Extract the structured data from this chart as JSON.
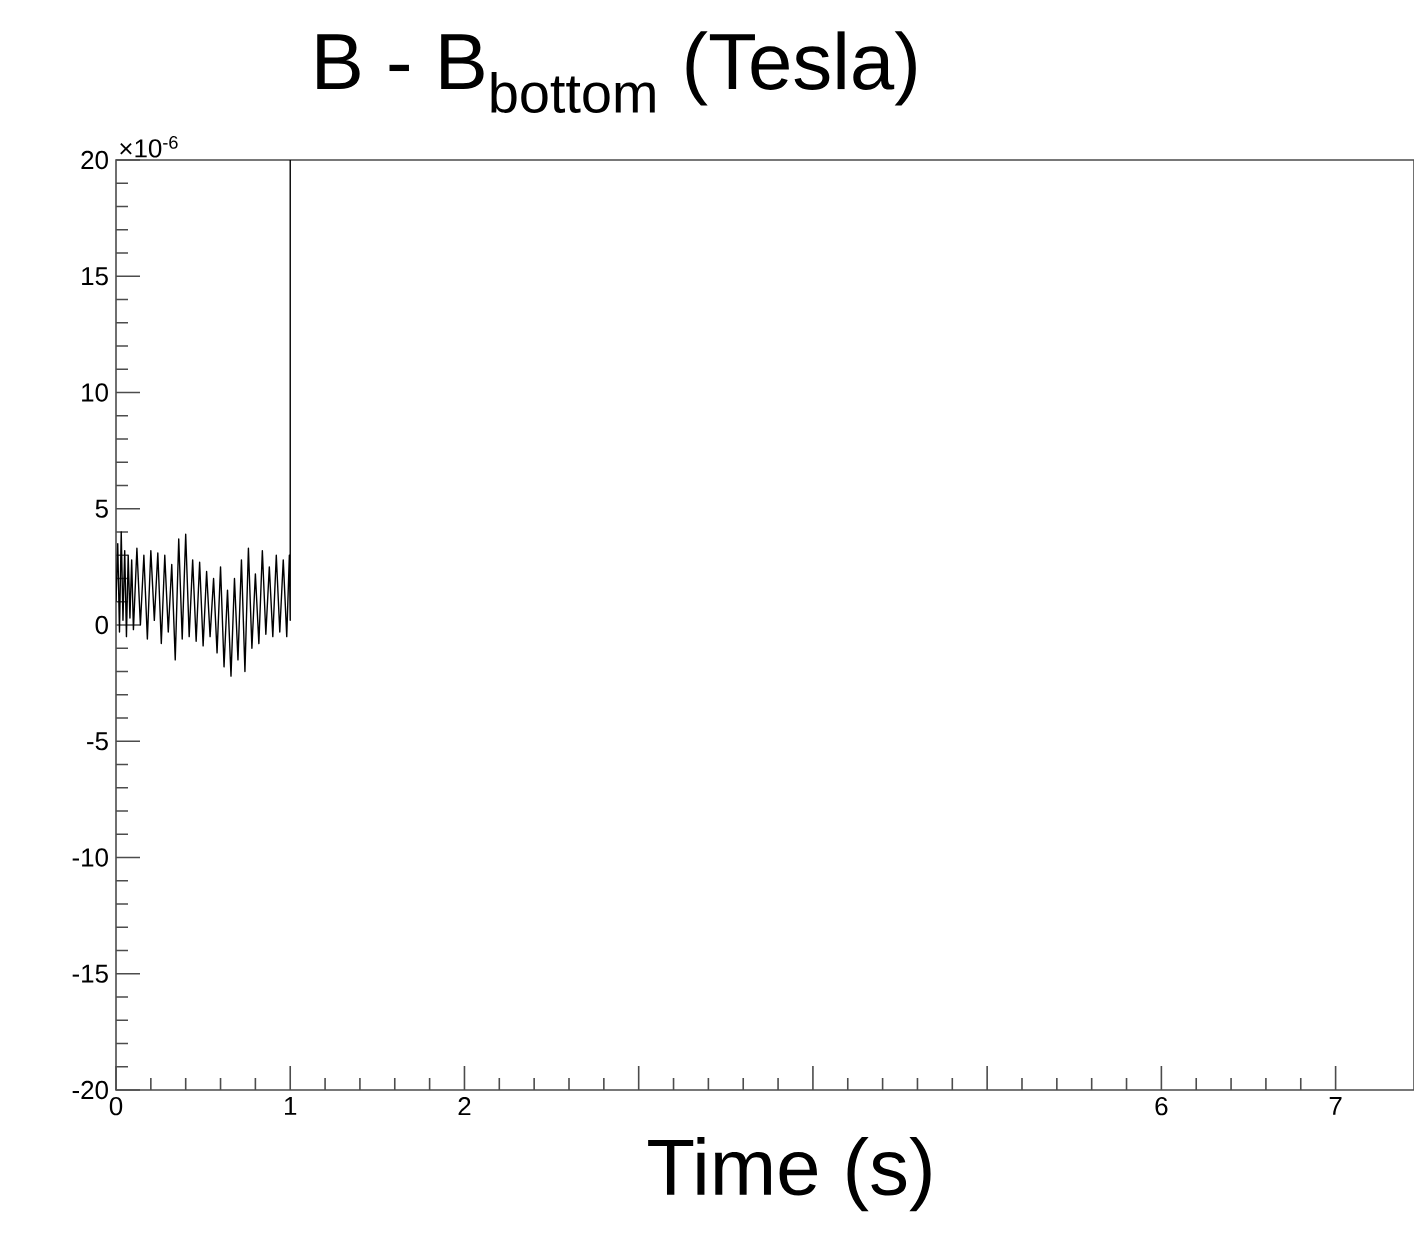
{
  "chart_data": {
    "type": "line",
    "title": "B - B$_{bottom}$ (Tesla)",
    "xlabel": "Time (s)",
    "annotations": [
      "×10$^{-6}$"
    ],
    "xlim": [
      0,
      7.45
    ],
    "ylim": [
      -20,
      20
    ],
    "xticks": [
      0,
      1,
      2,
      {
        "value": 3,
        "label": null
      },
      {
        "value": 4,
        "label": null
      },
      {
        "value": 5,
        "label": null
      },
      6,
      7
    ],
    "yticks": [
      -20,
      -15,
      -10,
      -5,
      0,
      5,
      10,
      15,
      20
    ],
    "marker": "none",
    "line_style": "solid",
    "series": [
      {
        "color": "#000000",
        "x": [
          0,
          0.01,
          0.02,
          0.03,
          0.04,
          0.05,
          0.06,
          0.07,
          0.08,
          0.09,
          0.1,
          0.12,
          0.14,
          0.16,
          0.18,
          0.2,
          0.22,
          0.24,
          0.26,
          0.28,
          0.3,
          0.32,
          0.34,
          0.36,
          0.38,
          0.4,
          0.42,
          0.44,
          0.46,
          0.48,
          0.5,
          0.52,
          0.54,
          0.56,
          0.58,
          0.6,
          0.62,
          0.64,
          0.66,
          0.68,
          0.7,
          0.72,
          0.74,
          0.76,
          0.78,
          0.8,
          0.82,
          0.84,
          0.86,
          0.88,
          0.9,
          0.92,
          0.94,
          0.96,
          0.98,
          0.995,
          1.0,
          1.0
        ],
        "values": [
          1.0,
          3.5,
          -0.3,
          4.0,
          0.2,
          3.2,
          -0.5,
          3.0,
          0.3,
          2.8,
          -0.2,
          3.3,
          0.0,
          3.0,
          -0.6,
          3.2,
          0.2,
          3.1,
          -0.8,
          3.0,
          -0.3,
          2.6,
          -1.5,
          3.7,
          -0.6,
          3.9,
          -0.5,
          2.8,
          -0.7,
          2.7,
          -0.9,
          2.3,
          -0.5,
          2.0,
          -1.2,
          2.5,
          -1.8,
          1.5,
          -2.2,
          2.0,
          -1.5,
          2.8,
          -2.0,
          3.3,
          -1.0,
          2.2,
          -0.8,
          3.2,
          -0.4,
          2.5,
          -0.5,
          3.0,
          -0.3,
          2.8,
          -0.5,
          3.0,
          0.2,
          20
        ]
      }
    ]
  }
}
